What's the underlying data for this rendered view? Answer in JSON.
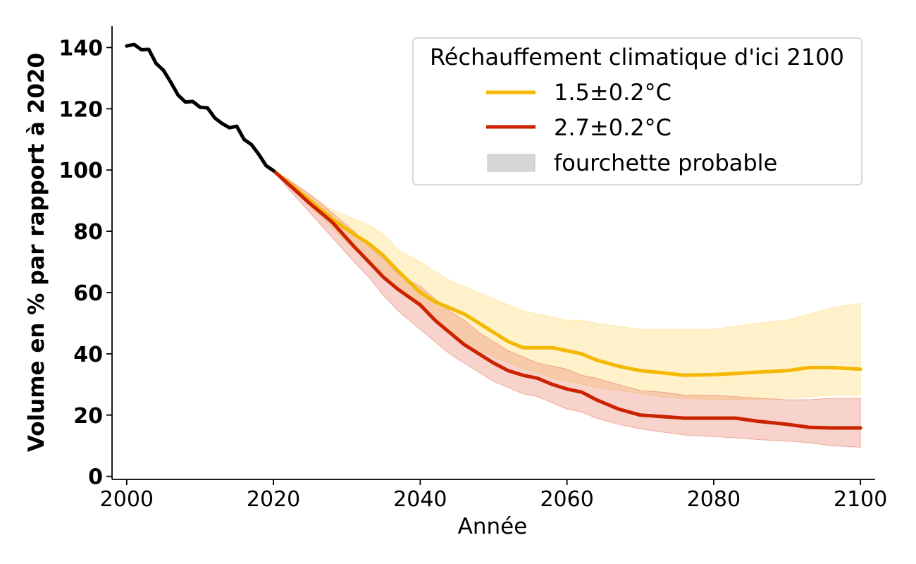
{
  "chart_data": {
    "type": "line",
    "xlabel": "Année",
    "ylabel": "Volume en % par rapport à 2020",
    "xlim": [
      1998,
      2102
    ],
    "ylim": [
      -1,
      147
    ],
    "xticks": [
      2000,
      2020,
      2040,
      2060,
      2080,
      2100
    ],
    "yticks": [
      0,
      20,
      40,
      60,
      80,
      100,
      120,
      140
    ],
    "grid": false,
    "legend": {
      "title": "Réchauffement climatique d'ici 2100",
      "placement": "top-right",
      "range_label": "fourchette probable"
    },
    "colors": {
      "historical": "#000000",
      "scenario_1": "#f5b800",
      "scenario_2": "#cc2200",
      "band_1": "#ffe08a",
      "band_2": "#e8806e",
      "legend_band": "#d6d6d6"
    },
    "historical": {
      "x": [
        2000,
        2001,
        2002,
        2003,
        2004,
        2005,
        2006,
        2007,
        2008,
        2009,
        2010,
        2011,
        2012,
        2013,
        2014,
        2015,
        2016,
        2017,
        2018,
        2019,
        2020
      ],
      "y": [
        140.5,
        141,
        139.3,
        139.4,
        134.8,
        132.6,
        128.7,
        124.5,
        122.2,
        122.4,
        120.5,
        120.3,
        117,
        115.2,
        113.8,
        114.3,
        110,
        108.3,
        105.1,
        101.4,
        99.8
      ]
    },
    "series": [
      {
        "name": "1.5±0.2°C",
        "x": [
          2020,
          2022,
          2025,
          2028,
          2031,
          2033,
          2035,
          2037,
          2040,
          2042,
          2044,
          2046,
          2048,
          2050,
          2052,
          2054,
          2056,
          2058,
          2060,
          2062,
          2064,
          2067,
          2070,
          2073,
          2076,
          2080,
          2083,
          2086,
          2090,
          2093,
          2096,
          2100
        ],
        "y": [
          99.8,
          96,
          90,
          84,
          79,
          76,
          72,
          67,
          60,
          57,
          55,
          53,
          50,
          47,
          44,
          42,
          42,
          42,
          41,
          40,
          38,
          36,
          34.5,
          33.8,
          33,
          33.2,
          33.6,
          34,
          34.5,
          35.5,
          35.5,
          35
        ],
        "lower": [
          99.8,
          95,
          88,
          81,
          74,
          70,
          66,
          61,
          55,
          51,
          47,
          44,
          41,
          39,
          37,
          35,
          34,
          32,
          31,
          30,
          29,
          28,
          27,
          26,
          25.5,
          25,
          25,
          25,
          25.5,
          26,
          26.5,
          26.5
        ],
        "upper": [
          99.8,
          97,
          92,
          87,
          84,
          82,
          79,
          74,
          70,
          67,
          64,
          62,
          60,
          58,
          56,
          54,
          53,
          52,
          51,
          51,
          50,
          49,
          48,
          48,
          48,
          48,
          49,
          50,
          51,
          53,
          55,
          56.5
        ]
      },
      {
        "name": "2.7±0.2°C",
        "x": [
          2020,
          2022,
          2025,
          2028,
          2031,
          2033,
          2035,
          2037,
          2040,
          2042,
          2044,
          2046,
          2048,
          2050,
          2052,
          2054,
          2056,
          2058,
          2060,
          2062,
          2064,
          2067,
          2070,
          2073,
          2076,
          2080,
          2083,
          2086,
          2090,
          2093,
          2096,
          2100
        ],
        "y": [
          99.8,
          95.5,
          89,
          83,
          75,
          70,
          65,
          61,
          56,
          51,
          47,
          43,
          40,
          37,
          34.5,
          33,
          32,
          30,
          28.5,
          27.5,
          25,
          22,
          20,
          19.5,
          19,
          19,
          19,
          18,
          17,
          16,
          15.8,
          15.8
        ],
        "lower": [
          99.8,
          94,
          86,
          78,
          70,
          65,
          59,
          54,
          48,
          44,
          40,
          37,
          34,
          31,
          29,
          27,
          26,
          24,
          22,
          21,
          19,
          17,
          15.5,
          14.5,
          13.5,
          13,
          12.5,
          12,
          11.5,
          11,
          10,
          9.5
        ],
        "upper": [
          99.8,
          97,
          92,
          86,
          80,
          75,
          71,
          66,
          62,
          58,
          54,
          51,
          47,
          44,
          41,
          39,
          37,
          36,
          35,
          33,
          32,
          30,
          28,
          27.5,
          26.5,
          26.5,
          26,
          25.5,
          25,
          25,
          25.5,
          25.5
        ]
      }
    ]
  }
}
